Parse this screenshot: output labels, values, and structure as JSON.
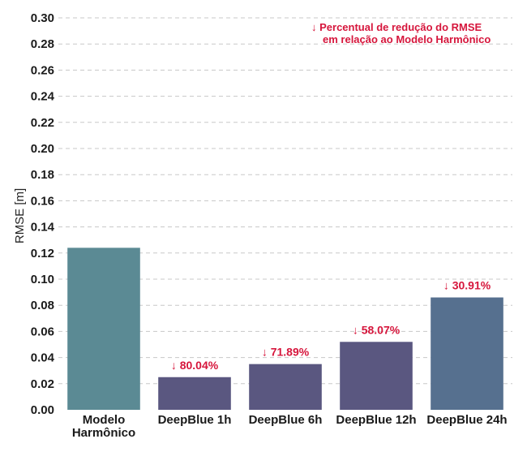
{
  "chart_data": {
    "type": "bar",
    "categories": [
      "Modelo\nHarmônico",
      "DeepBlue 1h",
      "DeepBlue 6h",
      "DeepBlue 12h",
      "DeepBlue 24h"
    ],
    "values": [
      0.124,
      0.025,
      0.035,
      0.052,
      0.086
    ],
    "data_labels": [
      "",
      "↓ 80.04%",
      "↓ 71.89%",
      "↓ 58.07%",
      "↓ 30.91%"
    ],
    "bar_colors": [
      "#5b8a94",
      "#5a5780",
      "#5a5780",
      "#5a5780",
      "#56708f"
    ],
    "label_color": "#d6163c",
    "ylabel": "RMSE [m]",
    "xlabel": "",
    "ylim": [
      0,
      0.3
    ],
    "yticks": [
      0.0,
      0.02,
      0.04,
      0.06,
      0.08,
      0.1,
      0.12,
      0.14,
      0.16,
      0.18,
      0.2,
      0.22,
      0.24,
      0.26,
      0.28,
      0.3
    ],
    "grid": true,
    "annotation": [
      "↓ Percentual de redução do RMSE",
      "em relação ao Modelo Harmônico"
    ],
    "annotation_position": "top-right"
  }
}
